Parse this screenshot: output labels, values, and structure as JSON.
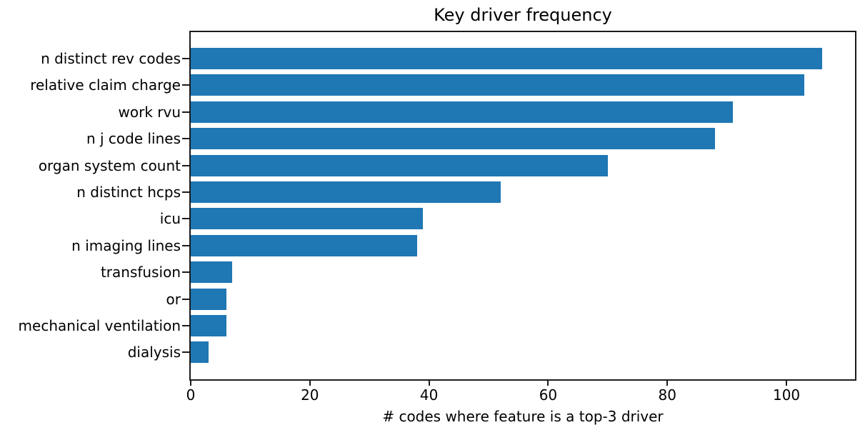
{
  "chart_data": {
    "type": "bar",
    "orientation": "horizontal",
    "title": "Key driver frequency",
    "xlabel": "# codes where feature is a top-3 driver",
    "ylabel": "",
    "categories": [
      "n distinct rev codes",
      "relative claim charge",
      "work rvu",
      "n j code lines",
      "organ system count",
      "n distinct hcps",
      "icu",
      "n imaging lines",
      "transfusion",
      "or",
      "mechanical ventilation",
      "dialysis"
    ],
    "values": [
      106,
      103,
      91,
      88,
      70,
      52,
      39,
      38,
      7,
      6,
      6,
      3
    ],
    "xticks": [
      0,
      20,
      40,
      60,
      80,
      100
    ],
    "xlim": [
      0,
      111.5
    ],
    "bar_color": "#1f77b4",
    "spine_color": "#1c1c1c",
    "text_color": "#000000",
    "background_color": "#ffffff",
    "grid": false,
    "legend": null
  }
}
